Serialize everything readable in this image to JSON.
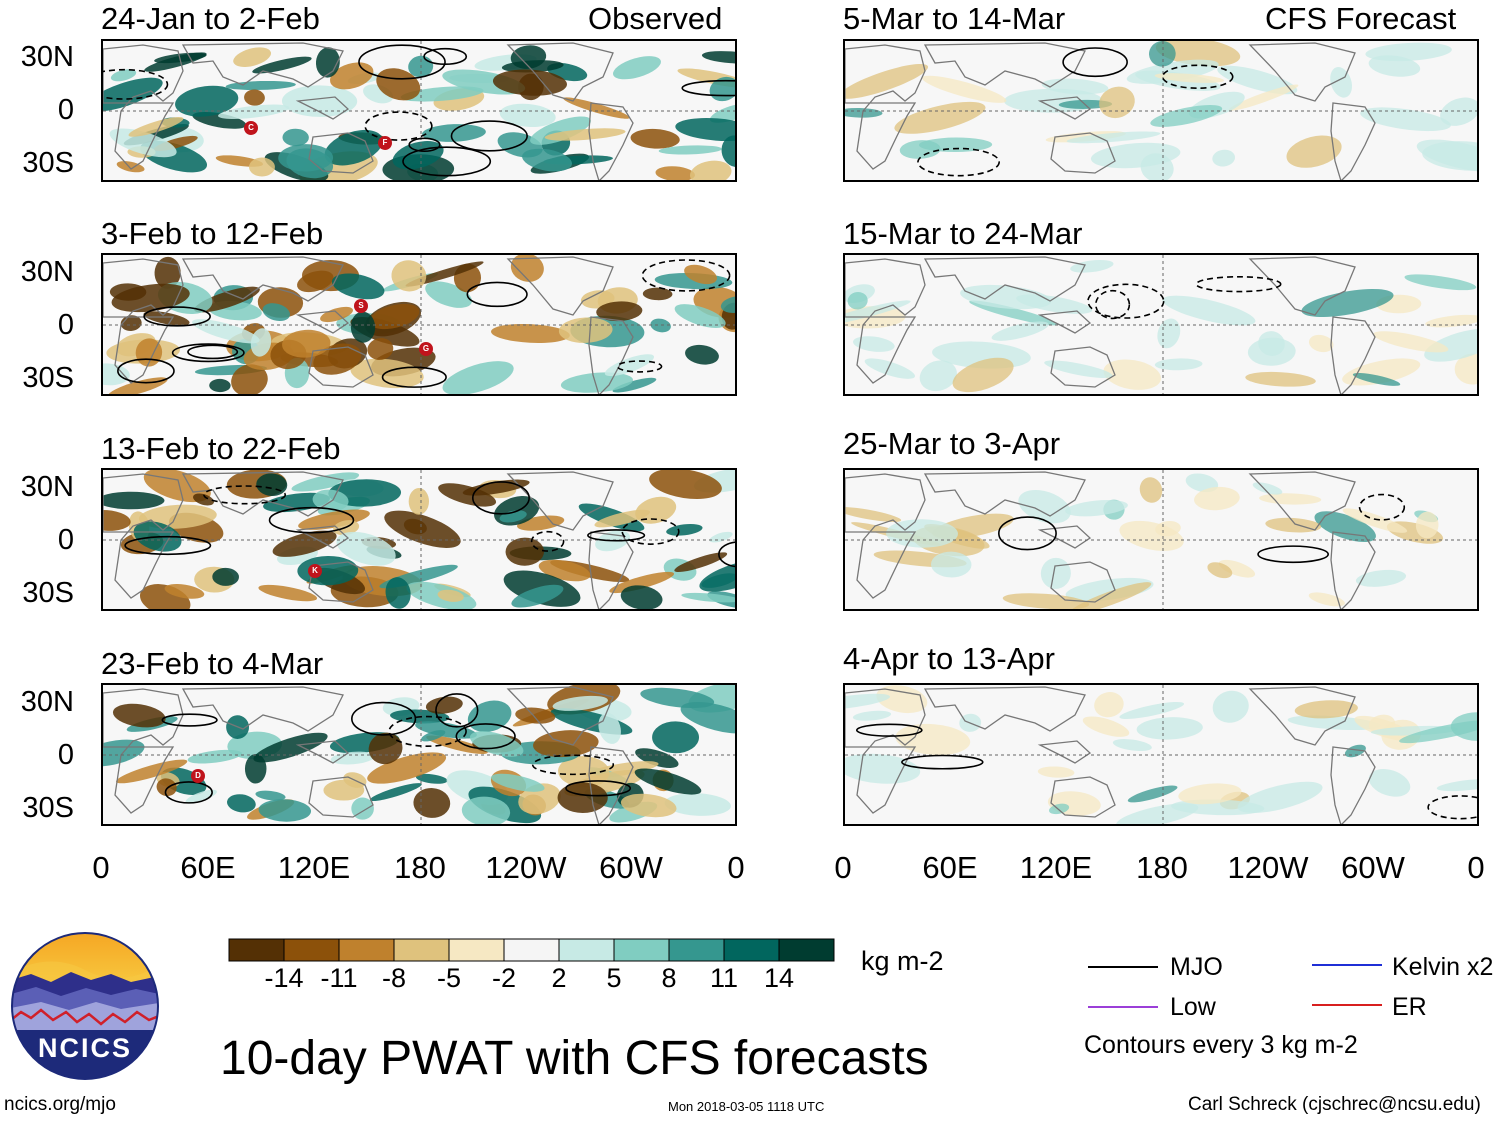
{
  "panels_left": {
    "header": "Observed",
    "titles": [
      "24-Jan to 2-Feb",
      "3-Feb to 12-Feb",
      "13-Feb to 22-Feb",
      "23-Feb to 4-Mar"
    ]
  },
  "panels_right": {
    "header": "CFS Forecast",
    "titles": [
      "5-Mar to 14-Mar",
      "15-Mar to 24-Mar",
      "25-Mar to 3-Apr",
      "4-Apr to 13-Apr"
    ]
  },
  "lat_labels": [
    "30N",
    "0",
    "30S"
  ],
  "lon_labels": [
    "0",
    "60E",
    "120E",
    "180",
    "120W",
    "60W",
    "0"
  ],
  "colorbar": {
    "colors": [
      "#543005",
      "#8c510a",
      "#bf812d",
      "#dfc27d",
      "#f6e8c3",
      "#f5f5f5",
      "#c7eae5",
      "#80cdc1",
      "#35978f",
      "#01665e",
      "#003c30"
    ],
    "ticks": [
      "-14",
      "-11",
      "-8",
      "-5",
      "-2",
      "2",
      "5",
      "8",
      "11",
      "14"
    ],
    "units": "kg m-2"
  },
  "title": "10-day PWAT with CFS forecasts",
  "legend": {
    "items": [
      {
        "label": "MJO",
        "color": "#000000"
      },
      {
        "label": "Kelvin x2",
        "color": "#1f2fd6"
      },
      {
        "label": "Low",
        "color": "#9b3fd8"
      },
      {
        "label": "ER",
        "color": "#d81f1f"
      }
    ],
    "contours_note": "Contours every 3 kg m-2"
  },
  "logo_text": "NCICS",
  "footer": {
    "left": "ncics.org/mjo",
    "center": "Mon 2018-03-05 1118 UTC",
    "right": "Carl Schreck (cjschrec@ncsu.edu)"
  },
  "storms": [
    {
      "panel": 0,
      "label": "C"
    },
    {
      "panel": 0,
      "label": "F"
    },
    {
      "panel": 1,
      "label": "S"
    },
    {
      "panel": 1,
      "label": "G"
    },
    {
      "panel": 2,
      "label": "K"
    },
    {
      "panel": 3,
      "label": "D"
    }
  ]
}
